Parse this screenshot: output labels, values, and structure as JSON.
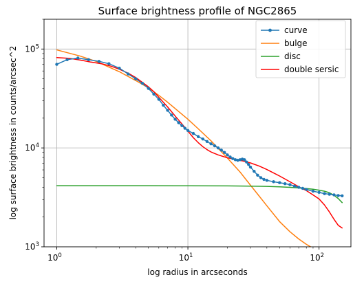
{
  "chart_data": {
    "type": "line",
    "title": "Surface brightness profile of NGC2865",
    "xlabel": "log radius in arcseconds",
    "ylabel": "log surface brightness in counts/arcsec^2",
    "xscale": "log",
    "yscale": "log",
    "xlim": [
      0.8,
      175
    ],
    "ylim": [
      1000,
      200000
    ],
    "grid": true,
    "legend_placement": "top-right",
    "x_ticks": [
      {
        "base": "10",
        "exp": "0",
        "value": 1
      },
      {
        "base": "10",
        "exp": "1",
        "value": 10
      },
      {
        "base": "10",
        "exp": "2",
        "value": 100
      }
    ],
    "y_ticks": [
      {
        "base": "10",
        "exp": "3",
        "value": 1000
      },
      {
        "base": "10",
        "exp": "4",
        "value": 10000
      },
      {
        "base": "10",
        "exp": "5",
        "value": 100000
      }
    ],
    "series": [
      {
        "name": "curve",
        "color": "#1f77b4",
        "marker": "circle",
        "points": [
          [
            1.0,
            70000
          ],
          [
            1.2,
            78000
          ],
          [
            1.45,
            81000
          ],
          [
            1.75,
            78000
          ],
          [
            2.1,
            75000
          ],
          [
            2.5,
            71000
          ],
          [
            3.0,
            64000
          ],
          [
            3.5,
            56000
          ],
          [
            4.0,
            50000
          ],
          [
            4.5,
            45000
          ],
          [
            5.0,
            40000
          ],
          [
            5.5,
            35000
          ],
          [
            6.0,
            31000
          ],
          [
            6.5,
            27000
          ],
          [
            7.0,
            24000
          ],
          [
            7.5,
            21500
          ],
          [
            8.0,
            19500
          ],
          [
            8.5,
            18000
          ],
          [
            9.0,
            16800
          ],
          [
            9.5,
            15800
          ],
          [
            10.0,
            15000
          ],
          [
            11.0,
            14000
          ],
          [
            12.0,
            13000
          ],
          [
            13.0,
            12300
          ],
          [
            14.0,
            11600
          ],
          [
            15.0,
            11000
          ],
          [
            16.0,
            10500
          ],
          [
            17.0,
            10000
          ],
          [
            18.0,
            9500
          ],
          [
            19.0,
            9000
          ],
          [
            20.0,
            8500
          ],
          [
            21.0,
            8100
          ],
          [
            22.0,
            7800
          ],
          [
            23.0,
            7600
          ],
          [
            24.0,
            7500
          ],
          [
            25.0,
            7600
          ],
          [
            26.0,
            7700
          ],
          [
            27.0,
            7600
          ],
          [
            28.0,
            7200
          ],
          [
            29.0,
            6800
          ],
          [
            30.0,
            6400
          ],
          [
            32.0,
            5800
          ],
          [
            34.0,
            5300
          ],
          [
            36.0,
            5000
          ],
          [
            38.0,
            4800
          ],
          [
            40.0,
            4700
          ],
          [
            45.0,
            4550
          ],
          [
            50.0,
            4450
          ],
          [
            55.0,
            4350
          ],
          [
            60.0,
            4250
          ],
          [
            65.0,
            4100
          ],
          [
            70.0,
            4000
          ],
          [
            75.0,
            3900
          ],
          [
            80.0,
            3800
          ],
          [
            90.0,
            3650
          ],
          [
            100.0,
            3550
          ],
          [
            110.0,
            3450
          ],
          [
            120.0,
            3400
          ],
          [
            130.0,
            3350
          ],
          [
            140.0,
            3300
          ],
          [
            150.0,
            3280
          ]
        ]
      },
      {
        "name": "bulge",
        "color": "#ff7f0e",
        "marker": "none",
        "points": [
          [
            1.0,
            98000
          ],
          [
            1.5,
            85000
          ],
          [
            2.0,
            75000
          ],
          [
            3.0,
            59000
          ],
          [
            4.0,
            48000
          ],
          [
            5.0,
            40500
          ],
          [
            6.0,
            34000
          ],
          [
            7.0,
            29000
          ],
          [
            8.0,
            25000
          ],
          [
            10.0,
            19500
          ],
          [
            12.0,
            15600
          ],
          [
            15.0,
            11800
          ],
          [
            20.0,
            7900
          ],
          [
            25.0,
            5700
          ],
          [
            30.0,
            4200
          ],
          [
            35.0,
            3250
          ],
          [
            40.0,
            2600
          ],
          [
            50.0,
            1800
          ],
          [
            60.0,
            1420
          ],
          [
            70.0,
            1200
          ],
          [
            80.0,
            1060
          ],
          [
            92.0,
            950
          ]
        ]
      },
      {
        "name": "disc",
        "color": "#2ca02c",
        "marker": "none",
        "points": [
          [
            1.0,
            4150
          ],
          [
            5.0,
            4145
          ],
          [
            10.0,
            4140
          ],
          [
            20.0,
            4130
          ],
          [
            30.0,
            4110
          ],
          [
            40.0,
            4080
          ],
          [
            50.0,
            4040
          ],
          [
            60.0,
            3990
          ],
          [
            70.0,
            3940
          ],
          [
            80.0,
            3880
          ],
          [
            90.0,
            3820
          ],
          [
            100.0,
            3740
          ],
          [
            110.0,
            3650
          ],
          [
            120.0,
            3520
          ],
          [
            130.0,
            3320
          ],
          [
            140.0,
            3080
          ],
          [
            150.0,
            2800
          ]
        ]
      },
      {
        "name": "double sersic",
        "color": "#ff0000",
        "marker": "none",
        "points": [
          [
            1.0,
            82000
          ],
          [
            1.25,
            80500
          ],
          [
            1.5,
            77500
          ],
          [
            1.8,
            74000
          ],
          [
            2.2,
            71000
          ],
          [
            2.6,
            67000
          ],
          [
            3.0,
            62500
          ],
          [
            3.5,
            57000
          ],
          [
            4.0,
            51500
          ],
          [
            4.5,
            46000
          ],
          [
            5.0,
            41500
          ],
          [
            5.5,
            37000
          ],
          [
            6.0,
            32500
          ],
          [
            7.0,
            26000
          ],
          [
            8.0,
            21000
          ],
          [
            9.0,
            17500
          ],
          [
            10.0,
            14800
          ],
          [
            11.0,
            12700
          ],
          [
            12.0,
            11300
          ],
          [
            13.0,
            10300
          ],
          [
            14.0,
            9600
          ],
          [
            15.0,
            9100
          ],
          [
            17.0,
            8500
          ],
          [
            20.0,
            7950
          ],
          [
            23.0,
            7650
          ],
          [
            26.0,
            7400
          ],
          [
            30.0,
            7050
          ],
          [
            35.0,
            6550
          ],
          [
            40.0,
            6050
          ],
          [
            50.0,
            5200
          ],
          [
            60.0,
            4550
          ],
          [
            70.0,
            4050
          ],
          [
            80.0,
            3700
          ],
          [
            90.0,
            3350
          ],
          [
            100.0,
            3050
          ],
          [
            110.0,
            2650
          ],
          [
            120.0,
            2250
          ],
          [
            130.0,
            1900
          ],
          [
            140.0,
            1650
          ],
          [
            150.0,
            1550
          ]
        ]
      }
    ]
  }
}
